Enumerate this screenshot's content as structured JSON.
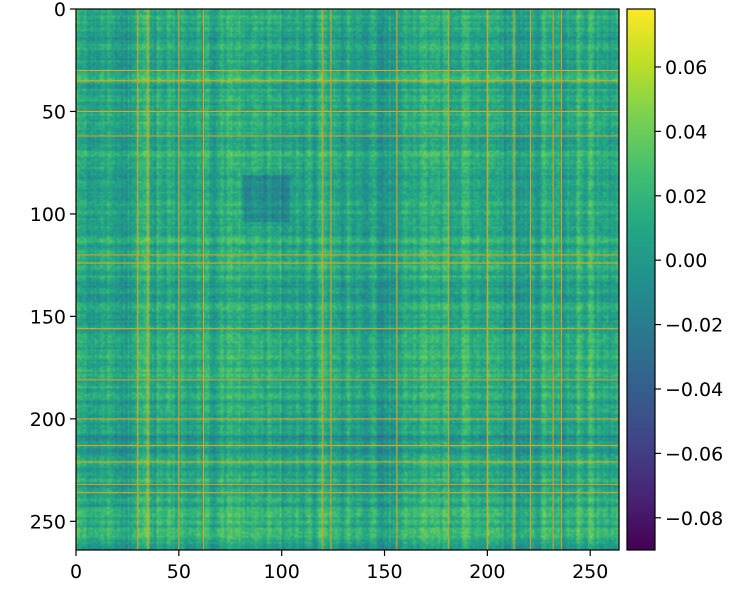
{
  "chart_data": {
    "type": "heatmap",
    "title": "",
    "xlabel": "",
    "ylabel": "",
    "matrix_size": 264,
    "xlim": [
      0,
      264
    ],
    "ylim": [
      264,
      0
    ],
    "xticks": [
      0,
      50,
      100,
      150,
      200,
      250
    ],
    "yticks": [
      0,
      50,
      100,
      150,
      200,
      250
    ],
    "x_tick_labels": [
      "0",
      "50",
      "100",
      "150",
      "200",
      "250"
    ],
    "y_tick_labels": [
      "0",
      "50",
      "100",
      "150",
      "200",
      "250"
    ],
    "colormap": "viridis",
    "value_range": [
      -0.09,
      0.078
    ],
    "colorbar_ticks": [
      0.06,
      0.04,
      0.02,
      0.0,
      -0.02,
      -0.04,
      -0.06,
      -0.08
    ],
    "colorbar_tick_labels": [
      "0.06",
      "0.04",
      "0.02",
      "0.00",
      "−0.02",
      "−0.04",
      "−0.06",
      "−0.08"
    ],
    "highlight_color": "#e8a317",
    "highlight_lines": [
      30,
      35,
      50,
      62,
      120,
      124,
      156,
      181,
      200,
      213,
      221,
      232,
      236
    ],
    "texture_seed": 7
  }
}
